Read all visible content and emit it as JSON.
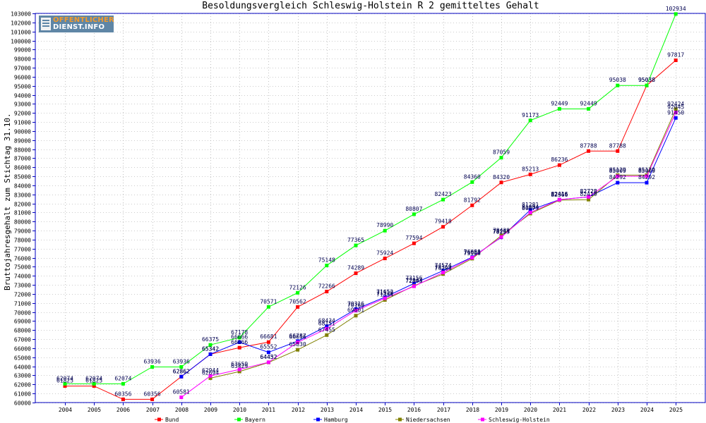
{
  "logo": {
    "line1": "OFFENTLICHER",
    "line2": "DIENST.INFO"
  },
  "colors": {
    "background": "#ffffff",
    "axis": "#0000c0",
    "grid": "#999999",
    "data_label": "#000050"
  },
  "chart_data": {
    "type": "line",
    "title": "Besoldungsvergleich Schleswig-Holstein R 2 gemitteltes Gehalt",
    "xlabel": "",
    "ylabel": "Bruttojahresgehalt zum Stichtag 31.10.",
    "categories": [
      "2004",
      "2005",
      "2006",
      "2007",
      "2008",
      "2009",
      "2010",
      "2011",
      "2012",
      "2013",
      "2014",
      "2015",
      "2016",
      "2017",
      "2018",
      "2019",
      "2020",
      "2021",
      "2022",
      "2023",
      "2024",
      "2025"
    ],
    "ylim": [
      60000,
      103000
    ],
    "ytick_step": 1000,
    "grid": true,
    "legend_position": "bottom",
    "series": [
      {
        "name": "Bund",
        "color": "#ff0000",
        "values": [
          61825,
          61825,
          60356,
          60356,
          62862,
          65342,
          66066,
          66681,
          70562,
          72266,
          74289,
          75924,
          77594,
          79418,
          81792,
          84320,
          85213,
          86236,
          87788,
          87788,
          95038,
          97817
        ],
        "labels": [
          "61825",
          "61825",
          "60356",
          "60356",
          "62862",
          "65342",
          "66066",
          "66681",
          "70562",
          "72266",
          "74289",
          "75924",
          "77594",
          "79418",
          "81792",
          "84320",
          "85213",
          "86236",
          "87788",
          "87788",
          "95038",
          "97817"
        ]
      },
      {
        "name": "Bayern",
        "color": "#00ff00",
        "values": [
          62074,
          62074,
          62074,
          63936,
          63936,
          66375,
          67178,
          70571,
          72126,
          75148,
          77365,
          78990,
          80807,
          82423,
          84360,
          87059,
          91173,
          92449,
          92449,
          95038,
          95038,
          102934
        ],
        "labels": [
          "62074",
          "62074",
          "62074",
          "63936",
          "63936",
          "66375",
          "67178",
          "70571",
          "72126",
          "75148",
          "77365",
          "78990",
          "80807",
          "82423",
          "84360",
          "87059",
          "91173",
          "92449",
          "92449",
          "95038",
          "95038",
          "102934"
        ]
      },
      {
        "name": "Hamburg",
        "color": "#0000ff",
        "values": [
          null,
          null,
          null,
          null,
          62862,
          65342,
          66666,
          65552,
          66787,
          68434,
          70316,
          71652,
          73156,
          74574,
          76058,
          78255,
          81281,
          82416,
          82728,
          84292,
          84292,
          91450
        ],
        "labels": [
          "",
          "",
          "",
          "",
          "62862",
          "65342",
          "66666",
          "65552",
          "66787",
          "68434",
          "70316",
          "71652",
          "73156",
          "74574",
          "76058",
          "78255",
          "81281",
          "82416",
          "82728",
          "84292",
          "84292",
          "91450"
        ]
      },
      {
        "name": "Niedersachsen",
        "color": "#808000",
        "values": [
          null,
          null,
          null,
          null,
          null,
          62694,
          63429,
          64432,
          65830,
          67455,
          69601,
          71334,
          72904,
          74204,
          75900,
          78439,
          80879,
          82366,
          82419,
          85129,
          85129,
          92424
        ],
        "labels": [
          "",
          "",
          "",
          "",
          "",
          "62694",
          "63429",
          "64432",
          "65830",
          "67455",
          "69601",
          "71334",
          "72904",
          "74204",
          "75900",
          "78439",
          "80879",
          "82366",
          "82419",
          "85129",
          "85129",
          "92424"
        ]
      },
      {
        "name": "Schleswig-Holstein",
        "color": "#ff00ff",
        "values": [
          null,
          null,
          null,
          null,
          60581,
          62944,
          63659,
          64452,
          66656,
          68151,
          70166,
          71520,
          72843,
          74369,
          76001,
          78294,
          81004,
          82416,
          82728,
          85009,
          85009,
          92045
        ],
        "labels": [
          "",
          "",
          "",
          "",
          "60581",
          "62944",
          "63659",
          "64452",
          "66656",
          "68151",
          "70166",
          "71520",
          "72843",
          "74369",
          "76001",
          "78294",
          "81004",
          "82416",
          "82728",
          "85009",
          "85009",
          "92045"
        ]
      }
    ]
  }
}
